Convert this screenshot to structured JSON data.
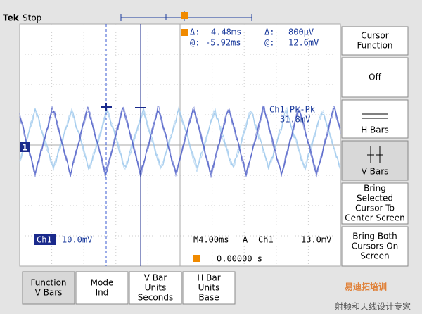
{
  "header": {
    "brand": "Tek",
    "status": "Stop"
  },
  "readout": {
    "delta_t_label": "Δ:",
    "delta_t": "4.48ms",
    "delta_v_label": "Δ:",
    "delta_v": "800μV",
    "at_t_label": "@:",
    "at_t": "-5.92ms",
    "at_v_label": "@:",
    "at_v": "12.6mV"
  },
  "measurement": {
    "label": "Ch1 Pk-Pk",
    "value": "31.8mV"
  },
  "channel_marker": "1",
  "status_bar": {
    "channel": "Ch1",
    "scale": "10.0mV",
    "timebase": "M4.00ms",
    "trigger_mode": "A",
    "trigger_source": "Ch1",
    "trigger_level": "13.0mV",
    "trigger_position": "0.00000 s"
  },
  "side_menu": [
    [
      "Cursor",
      "Function"
    ],
    [
      "Off"
    ],
    [
      "H Bars"
    ],
    [
      "V Bars"
    ],
    [
      "Bring",
      "Selected",
      "Cursor To",
      "Center Screen"
    ],
    [
      "Bring Both",
      "Cursors On",
      "Screen"
    ]
  ],
  "bottom_menu": [
    [
      "Function",
      "V Bars"
    ],
    [
      "Mode",
      "Ind"
    ],
    [
      "V Bar",
      "Units",
      "Seconds"
    ],
    [
      "H Bar",
      "Units",
      "Base"
    ]
  ],
  "watermark": {
    "title": "易迪拓培训",
    "subtitle": "射频和天线设计专家"
  }
}
